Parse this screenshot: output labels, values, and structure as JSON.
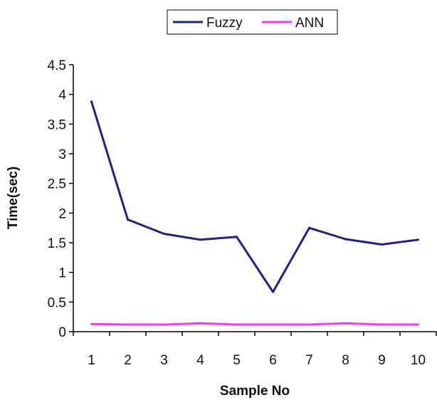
{
  "chart_data": {
    "type": "line",
    "title": "",
    "xlabel": "Sample No",
    "ylabel": "Time(sec)",
    "x": [
      1,
      2,
      3,
      4,
      5,
      6,
      7,
      8,
      9,
      10
    ],
    "x_tick_labels": [
      "1",
      "2",
      "3",
      "4",
      "5",
      "6",
      "7",
      "8",
      "9",
      "10"
    ],
    "y_tick_labels": [
      "0",
      "0.5",
      "1",
      "1.5",
      "2",
      "2.5",
      "3",
      "3.5",
      "4",
      "4.5"
    ],
    "ylim": [
      0,
      4.5
    ],
    "grid": false,
    "legend_position": "top",
    "series": [
      {
        "name": "Fuzzy",
        "color": "#1f1f8f",
        "values": [
          3.88,
          1.89,
          1.65,
          1.55,
          1.6,
          0.67,
          1.75,
          1.56,
          1.47,
          1.55
        ]
      },
      {
        "name": "ANN",
        "color": "#ff33ff",
        "values": [
          0.13,
          0.12,
          0.12,
          0.14,
          0.12,
          0.12,
          0.12,
          0.14,
          0.12,
          0.12
        ]
      }
    ]
  }
}
